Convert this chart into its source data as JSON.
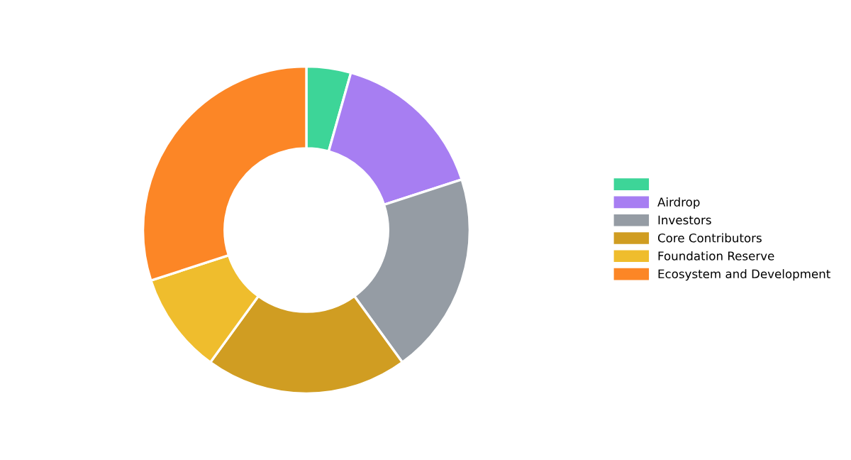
{
  "chart_data": {
    "type": "donut",
    "categories": [
      null,
      "Airdrop",
      "Investors",
      "Core Contributors",
      "Foundation Reserve",
      "Ecosystem and Development"
    ],
    "values": [
      4.4,
      15.6,
      20,
      20,
      10,
      30
    ],
    "colors": [
      "#3dd598",
      "#a77ef2",
      "#959ca4",
      "#d09d22",
      "#efbd2d",
      "#fc8626"
    ],
    "legend": "right"
  }
}
